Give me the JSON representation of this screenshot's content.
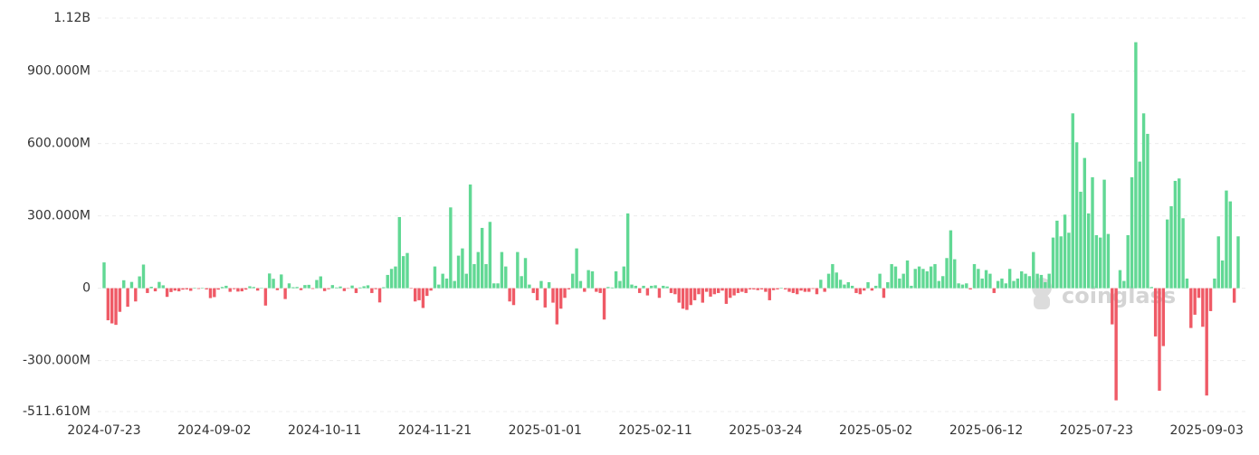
{
  "chart_data": {
    "type": "bar",
    "watermark": "coinglass",
    "positive_color": "#61d894",
    "negative_color": "#ef5a66",
    "grid": true,
    "ylim": [
      -511.61,
      1120
    ],
    "yticks": [
      {
        "value": -511.61,
        "label": "-511.610M"
      },
      {
        "value": -300,
        "label": "-300.000M"
      },
      0,
      {
        "value": 300,
        "label": "300.000M"
      },
      {
        "value": 600,
        "label": "600.000M"
      },
      {
        "value": 900,
        "label": "900.000M"
      },
      {
        "value": 1120,
        "label": "1.12B"
      }
    ],
    "categories": [
      "2024-07-23",
      null,
      null,
      null,
      null,
      null,
      null,
      null,
      null,
      null,
      null,
      null,
      null,
      null,
      null,
      null,
      null,
      null,
      null,
      null,
      null,
      null,
      null,
      null,
      null,
      null,
      null,
      null,
      "2024-09-02",
      null,
      null,
      null,
      null,
      null,
      null,
      null,
      null,
      null,
      null,
      null,
      null,
      null,
      null,
      null,
      null,
      null,
      null,
      null,
      null,
      null,
      null,
      null,
      null,
      null,
      null,
      null,
      "2024-10-11",
      null,
      null,
      null,
      null,
      null,
      null,
      null,
      null,
      null,
      null,
      null,
      null,
      null,
      null,
      null,
      null,
      null,
      null,
      null,
      null,
      null,
      null,
      null,
      null,
      null,
      null,
      null,
      "2024-11-21",
      null,
      null,
      null,
      null,
      null,
      null,
      null,
      null,
      null,
      null,
      null,
      null,
      null,
      null,
      null,
      null,
      null,
      null,
      null,
      null,
      null,
      null,
      null,
      null,
      null,
      null,
      null,
      "2025-01-01",
      null,
      null,
      null,
      null,
      null,
      null,
      null,
      null,
      null,
      null,
      null,
      null,
      null,
      null,
      null,
      null,
      null,
      null,
      null,
      null,
      null,
      null,
      null,
      null,
      null,
      null,
      null,
      "2025-02-11",
      null,
      null,
      null,
      null,
      null,
      null,
      null,
      null,
      null,
      null,
      null,
      null,
      null,
      null,
      null,
      null,
      null,
      null,
      null,
      null,
      null,
      null,
      null,
      null,
      null,
      null,
      null,
      "2025-03-24",
      null,
      null,
      null,
      null,
      null,
      null,
      null,
      null,
      null,
      null,
      null,
      null,
      null,
      null,
      null,
      null,
      null,
      null,
      null,
      null,
      null,
      null,
      null,
      null,
      null,
      null,
      null,
      "2025-05-02",
      null,
      null,
      null,
      null,
      null,
      null,
      null,
      null,
      null,
      null,
      null,
      null,
      null,
      null,
      null,
      null,
      null,
      null,
      null,
      null,
      null,
      null,
      null,
      null,
      null,
      null,
      null,
      "2025-06-12",
      null,
      null,
      null,
      null,
      null,
      null,
      null,
      null,
      null,
      null,
      null,
      null,
      null,
      null,
      null,
      null,
      null,
      null,
      null,
      null,
      null,
      null,
      null,
      null,
      null,
      null,
      null,
      "2025-07-23",
      null,
      null,
      null,
      null,
      null,
      null,
      null,
      null,
      null,
      null,
      null,
      null,
      null,
      null,
      null,
      null,
      null,
      null,
      null,
      null,
      null,
      null,
      null,
      null,
      null,
      null,
      null,
      "2025-09-03",
      null,
      null,
      null,
      null,
      null,
      null,
      null,
      null
    ],
    "values": [
      107,
      -133,
      -146,
      -152,
      -98,
      33,
      -77,
      26,
      -55,
      49,
      98,
      -20,
      6,
      -13,
      26,
      12,
      -36,
      -16,
      -10,
      -13,
      -6,
      -5,
      -11,
      2,
      -3,
      1,
      -5,
      -41,
      -37,
      -6,
      5,
      10,
      -15,
      -4,
      -14,
      -13,
      -6,
      8,
      5,
      -10,
      2,
      -72,
      61,
      39,
      -8,
      57,
      -45,
      20,
      4,
      5,
      -8,
      13,
      14,
      -3,
      34,
      49,
      -12,
      -4,
      13,
      3,
      7,
      -12,
      -2,
      11,
      -20,
      3,
      8,
      12,
      -20,
      -4,
      -59,
      4,
      55,
      80,
      90,
      295,
      133,
      146,
      -2,
      -55,
      -50,
      -82,
      -32,
      -10,
      90,
      15,
      60,
      40,
      335,
      30,
      135,
      165,
      60,
      430,
      100,
      150,
      250,
      100,
      275,
      20,
      20,
      150,
      90,
      -55,
      -70,
      150,
      50,
      125,
      15,
      -20,
      -50,
      30,
      -80,
      25,
      -60,
      -150,
      -85,
      -40,
      -5,
      60,
      165,
      30,
      -15,
      75,
      70,
      -15,
      -20,
      -130,
      5,
      3,
      70,
      30,
      90,
      310,
      15,
      10,
      -20,
      10,
      -30,
      10,
      12,
      -40,
      10,
      7,
      -20,
      -25,
      -60,
      -85,
      -90,
      -70,
      -50,
      -25,
      -60,
      -15,
      -35,
      -25,
      -20,
      -10,
      -65,
      -40,
      -30,
      -20,
      -15,
      -20,
      -5,
      -5,
      -8,
      -5,
      -15,
      -50,
      -8,
      -5,
      2,
      -5,
      -15,
      -20,
      -25,
      -10,
      -15,
      -15,
      -3,
      -25,
      35,
      -15,
      60,
      100,
      65,
      35,
      15,
      25,
      10,
      -20,
      -25,
      -10,
      25,
      -10,
      10,
      60,
      -40,
      25,
      100,
      90,
      40,
      60,
      115,
      10,
      80,
      90,
      80,
      70,
      90,
      100,
      30,
      50,
      125,
      240,
      120,
      20,
      15,
      20,
      -5,
      100,
      80,
      40,
      75,
      60,
      -20,
      30,
      40,
      20,
      80,
      30,
      40,
      70,
      60,
      50,
      150,
      60,
      55,
      25,
      60,
      210,
      280,
      215,
      305,
      230,
      725,
      605,
      400,
      540,
      310,
      460,
      220,
      210,
      450,
      225,
      -150,
      -465,
      75,
      30,
      220,
      460,
      1020,
      525,
      725,
      640,
      5,
      -200,
      -425,
      -240,
      285,
      340,
      445,
      455,
      290,
      40,
      -165,
      -110,
      -40,
      -160,
      -445,
      -95,
      40,
      215,
      115,
      405,
      360,
      -60,
      215
    ]
  }
}
